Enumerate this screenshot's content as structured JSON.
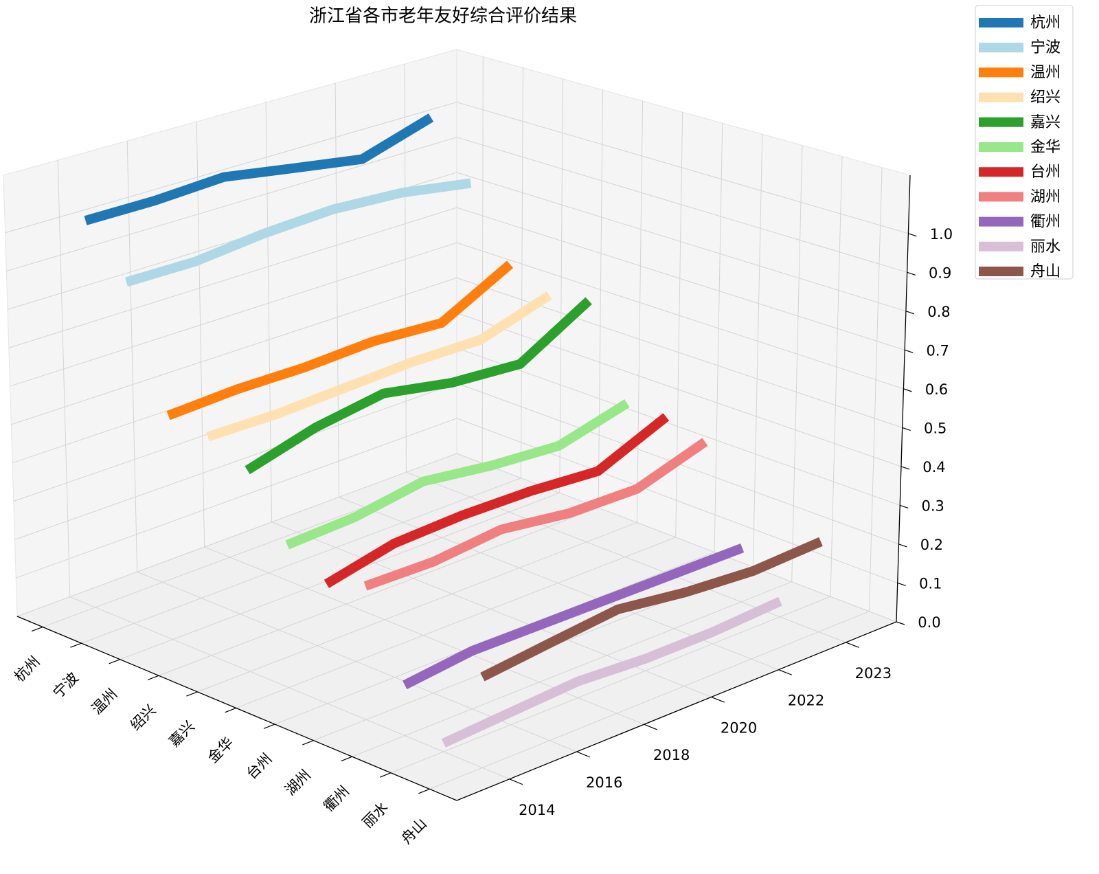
{
  "chart_data": {
    "type": "line3d",
    "title": "浙江省各市老年友好综合评价结果",
    "categories": [
      "2014",
      "2016",
      "2018",
      "2020",
      "2022",
      "2023"
    ],
    "series": [
      {
        "name": "杭州",
        "color": "#1f77b4",
        "values": [
          1.01,
          1.01,
          1.02,
          0.99,
          0.96,
          1.02
        ]
      },
      {
        "name": "宁波",
        "color": "#aed8e6",
        "values": [
          0.88,
          0.88,
          0.9,
          0.91,
          0.9,
          0.87
        ]
      },
      {
        "name": "温州",
        "color": "#ff7f0e",
        "values": [
          0.57,
          0.58,
          0.58,
          0.59,
          0.58,
          0.68
        ]
      },
      {
        "name": "绍兴",
        "color": "#ffe0b0",
        "values": [
          0.55,
          0.55,
          0.56,
          0.57,
          0.57,
          0.63
        ]
      },
      {
        "name": "嘉兴",
        "color": "#2ca02c",
        "values": [
          0.5,
          0.55,
          0.58,
          0.55,
          0.54,
          0.65
        ]
      },
      {
        "name": "金华",
        "color": "#98e88a",
        "values": [
          0.35,
          0.36,
          0.39,
          0.37,
          0.36,
          0.41
        ]
      },
      {
        "name": "台州",
        "color": "#d62728",
        "values": [
          0.29,
          0.33,
          0.34,
          0.34,
          0.33,
          0.41
        ]
      },
      {
        "name": "湖州",
        "color": "#f08080",
        "values": [
          0.32,
          0.32,
          0.34,
          0.32,
          0.32,
          0.38
        ]
      },
      {
        "name": "衢州",
        "color": "#9467bd",
        "values": [
          0.12,
          0.14,
          0.14,
          0.14,
          0.14,
          0.14
        ]
      },
      {
        "name": "丽水",
        "color": "#d8bfd8",
        "values": [
          0.02,
          0.03,
          0.04,
          0.03,
          0.03,
          0.04
        ]
      },
      {
        "name": "舟山",
        "color": "#8c564b",
        "values": [
          0.21,
          0.23,
          0.25,
          0.23,
          0.22,
          0.23
        ]
      }
    ],
    "zlim": [
      0,
      1.15
    ],
    "zticks": [
      {
        "value": 0,
        "label": "0.0"
      },
      0.1,
      0.2,
      0.3,
      0.4,
      0.5,
      0.6,
      0.7,
      0.8,
      0.9,
      {
        "value": 1,
        "label": "1.0"
      }
    ],
    "grid": true,
    "legend": "upper right"
  }
}
